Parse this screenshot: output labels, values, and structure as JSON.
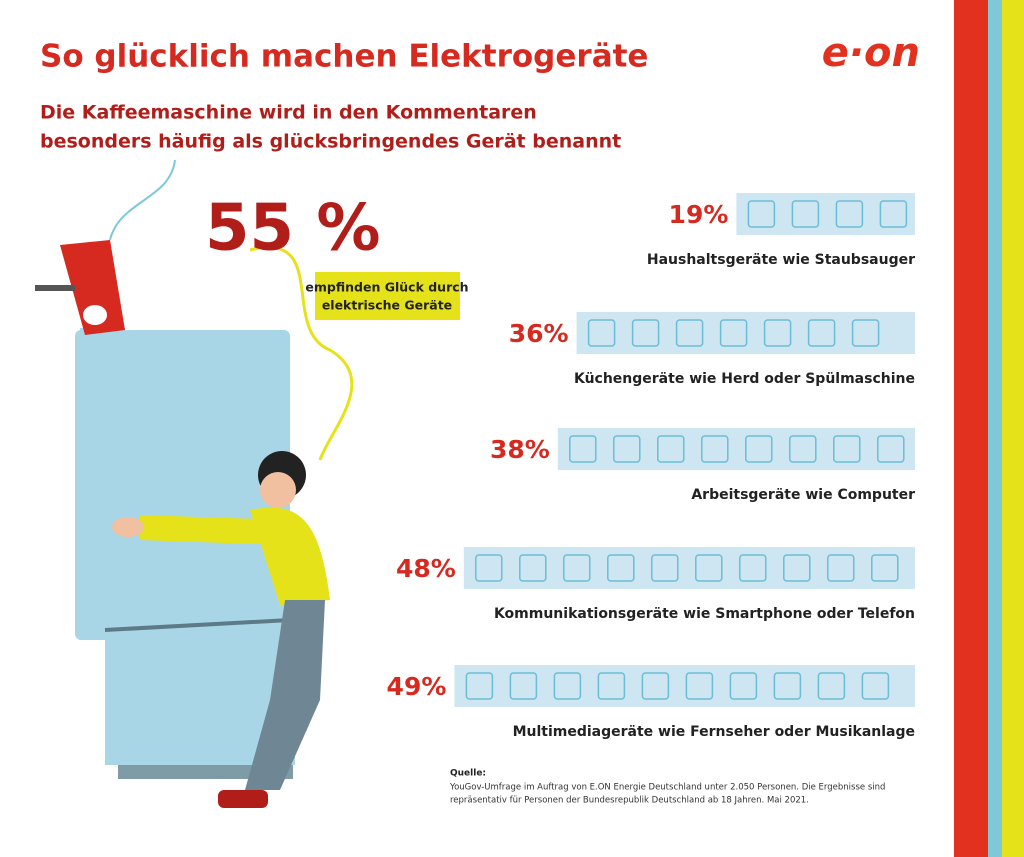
{
  "chart_data": {
    "type": "bar",
    "title": "So glücklich machen Elektrogeräte",
    "subtitle": [
      "Die Kaffeemaschine wird in den Kommentaren",
      "besonders häufig als glücksbringendes Gerät benannt"
    ],
    "logo": "e·on",
    "highlight": {
      "value": 55,
      "value_label": "55 %",
      "text": [
        "empfinden Glück durch",
        "elektrische Geräte"
      ]
    },
    "categories": [
      "Haushaltsgeräte wie Staubsauger",
      "Küchengeräte wie Herd oder Spülmaschine",
      "Arbeitsgeräte wie Computer",
      "Kommunikationsgeräte wie Smartphone oder Telefon",
      "Multimediageräte wie Fernseher oder Musikanlage"
    ],
    "values": [
      19,
      36,
      38,
      48,
      49
    ],
    "value_labels": [
      "19%",
      "36%",
      "38%",
      "48%",
      "49%"
    ],
    "color": "#cde6f2",
    "source": {
      "label": "Quelle:",
      "lines": [
        "YouGov-Umfrage im Auftrag von E.ON Energie Deutschland unter 2.050 Personen. Die Ergebnisse sind",
        "repräsentativ für Personen der Bundesrepublik Deutschland ab 18 Jahren. Mai 2021."
      ]
    }
  }
}
